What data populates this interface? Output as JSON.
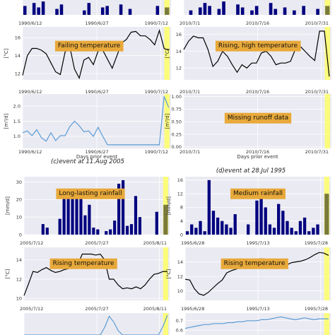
{
  "figure": {
    "captions": [
      {
        "key": "c",
        "text": "(c)event at 11.Aug 2005"
      },
      {
        "key": "d",
        "text": "(d)event at 28.Jul 1995"
      }
    ]
  },
  "colors": {
    "plot_bg": "#eaeaf2",
    "grid": "#ffffff",
    "bar": "#00007f",
    "bar_event": "#7a7a3a",
    "temp_line": "#000000",
    "runoff_line": "#5b9bd5",
    "highlight": "#ffff66",
    "note_bg": "#e8a93a"
  },
  "chart_data": [
    {
      "id": "a-rain",
      "type": "bar",
      "partial": true,
      "xlabels": [
        "1990/6/12",
        "1990/6/27",
        "1990/7/12"
      ],
      "values": [
        6,
        0,
        8,
        5,
        9,
        0,
        0,
        4,
        7,
        0,
        0,
        0,
        0,
        3,
        8,
        0,
        0,
        5,
        6,
        0,
        0,
        7,
        0,
        4,
        0,
        0,
        0,
        0,
        0,
        6
      ],
      "event_value": 5,
      "ylim": [
        0,
        10
      ]
    },
    {
      "id": "a-temp",
      "type": "line",
      "ylabel": "[°C]",
      "yticks": [
        "12",
        "14",
        "16"
      ],
      "ylim": [
        11.3,
        17.2
      ],
      "xlabels": [
        "1990/6/12",
        "1990/6/27",
        "1990/7/12"
      ],
      "values": [
        11.8,
        14.0,
        14.8,
        14.8,
        14.6,
        14.2,
        13.2,
        12.2,
        11.9,
        14.4,
        15.0,
        12.5,
        11.5,
        13.5,
        13.8,
        13.0,
        14.5,
        14.6,
        13.6,
        12.6,
        14.0,
        15.4,
        15.8,
        16.6,
        16.7,
        16.2,
        16.2,
        15.8,
        15.2,
        16.8,
        14.8,
        14.6
      ],
      "note": "Failing temperature"
    },
    {
      "id": "a-runoff",
      "type": "line",
      "ylabel": "[m³/d]",
      "yticks": [
        "1.0",
        "1.5",
        "2.0"
      ],
      "ylim": [
        0.6,
        2.4
      ],
      "xlabels": [
        "1990/6/12",
        "1990/6/27",
        "1990/7/12"
      ],
      "values": [
        1.12,
        1.18,
        1.02,
        1.22,
        0.95,
        0.84,
        1.12,
        0.86,
        1.02,
        1.02,
        1.32,
        1.5,
        1.35,
        1.15,
        1.18,
        1.0,
        1.3,
        1.0,
        0.72,
        0.72,
        0.72,
        0.72,
        0.72,
        0.72,
        0.72,
        0.72,
        0.72,
        0.72,
        0.72,
        0.72,
        2.32,
        1.95
      ],
      "xlabel": "Days prior event"
    },
    {
      "id": "b-rain",
      "type": "bar",
      "partial": true,
      "xlabels": [
        "2010/7/1",
        "2010/7/16",
        "2010/7/31"
      ],
      "values": [
        0,
        3,
        0,
        5,
        8,
        6,
        0,
        4,
        9,
        0,
        0,
        7,
        5,
        0,
        3,
        6,
        0,
        0,
        8,
        4,
        0,
        5,
        0,
        3,
        0,
        6,
        0,
        0,
        4
      ],
      "event_value": 6,
      "ylim": [
        0,
        10
      ]
    },
    {
      "id": "b-temp",
      "type": "line",
      "ylabel": "[°C]",
      "yticks": [
        "12",
        "14",
        "16"
      ],
      "ylim": [
        10.6,
        16.9
      ],
      "xlabels": [
        "2010/7/1",
        "2010/7/16",
        "2010/7/31"
      ],
      "values": [
        14.2,
        15.2,
        15.8,
        15.6,
        15.6,
        14.2,
        12.2,
        12.8,
        14.0,
        13.4,
        12.4,
        11.5,
        12.4,
        12.0,
        12.6,
        12.6,
        13.8,
        14.0,
        13.4,
        12.4,
        12.6,
        12.6,
        12.8,
        14.2,
        14.6,
        14.0,
        13.4,
        12.9,
        16.4,
        16.4,
        11.0
      ],
      "note": "Rising, high temperature"
    },
    {
      "id": "b-runoff",
      "type": "empty",
      "ylabel": "[m³/d]",
      "yticks": [
        "0.00",
        "0.25",
        "0.50",
        "0.75",
        "1.00"
      ],
      "ylim": [
        -0.03,
        1.05
      ],
      "xlabels": [
        "2010/7/1",
        "2010/7/16",
        "2010/7/31"
      ],
      "xlabel": "Days prior event",
      "note": "Missing runoff data"
    },
    {
      "id": "c-rain",
      "type": "bar",
      "ylabel": "[mm/d]",
      "yticks": [
        "0",
        "10",
        "20",
        "30"
      ],
      "ylim": [
        0,
        33
      ],
      "xlabels": [
        "2005/7/12",
        "2005/7/27",
        "2005/8/11"
      ],
      "values": [
        0,
        0,
        0,
        0,
        6,
        4,
        0,
        0,
        9,
        22,
        26,
        21,
        25,
        23,
        11,
        17,
        4,
        3,
        0,
        2,
        3,
        8,
        29,
        31,
        5,
        6,
        22,
        10,
        0,
        0,
        0,
        13
      ],
      "event_value": 17,
      "note": "Long-lasting rainfall"
    },
    {
      "id": "c-temp",
      "type": "line",
      "ylabel": "[°C]",
      "yticks": [
        "10",
        "12",
        "14"
      ],
      "ylim": [
        9.8,
        15.3
      ],
      "xlabels": [
        "2005/7/12",
        "2005/7/27",
        "2005/8/11"
      ],
      "values": [
        10.3,
        11.5,
        12.8,
        12.7,
        13.0,
        13.2,
        12.9,
        12.7,
        12.8,
        13.0,
        13.1,
        13.2,
        13.5,
        14.6,
        14.6,
        14.6,
        14.5,
        14.6,
        14.0,
        12.0,
        12.0,
        11.4,
        11.0,
        11.1,
        11.0,
        11.2,
        11.0,
        11.4,
        12.0,
        12.5,
        12.6,
        12.8,
        12.8
      ],
      "note": "Rising temperature"
    },
    {
      "id": "c-runoff",
      "type": "line",
      "partial": true,
      "values": [
        0,
        0,
        0,
        0,
        0,
        0,
        0,
        0,
        0,
        0,
        0,
        0,
        0,
        0,
        0,
        0,
        0,
        0,
        0.35,
        0.85,
        0.6,
        0.2,
        0,
        0,
        0,
        0,
        0,
        0,
        0,
        0,
        0,
        0.4,
        0.9
      ],
      "ylim": [
        0,
        1
      ]
    },
    {
      "id": "d-rain",
      "type": "bar",
      "ylabel": "[mm/d]",
      "yticks": [
        "0",
        "4",
        "8",
        "12",
        "16"
      ],
      "ylim": [
        0,
        17
      ],
      "xlabels": [
        "1995/6/28",
        "1995/7/13",
        "1995/7/28"
      ],
      "values": [
        1,
        3,
        2,
        4,
        1,
        16,
        7,
        5,
        4,
        3,
        2,
        6,
        0,
        0,
        3,
        0,
        10,
        12,
        8,
        3,
        2,
        9,
        7,
        4,
        2,
        1,
        4,
        5,
        1,
        2,
        3
      ],
      "event_value": 12,
      "note": "Medium rainfall"
    },
    {
      "id": "d-temp",
      "type": "line",
      "ylabel": "[°C]",
      "yticks": [
        "10",
        "12",
        "14"
      ],
      "ylim": [
        8.7,
        16.0
      ],
      "xlabels": [
        "1995/6/28",
        "1995/7/13",
        "1995/7/28"
      ],
      "values": [
        11.6,
        11.5,
        10.3,
        9.6,
        9.4,
        9.8,
        10.4,
        11.0,
        11.5,
        12.5,
        12.8,
        13.0,
        13.2,
        13.6,
        14.0,
        14.2,
        14.4,
        14.4,
        14.1,
        13.8,
        13.4,
        13.3,
        13.6,
        13.9,
        14.0,
        14.1,
        14.3,
        14.6,
        15.0,
        15.3,
        15.2,
        14.9
      ],
      "note": "Rising temperature"
    },
    {
      "id": "d-runoff",
      "type": "line",
      "partial": true,
      "yticks": [
        "0.6",
        "0.7"
      ],
      "ylim": [
        0.55,
        0.78
      ],
      "values": [
        0.62,
        0.63,
        0.64,
        0.65,
        0.66,
        0.66,
        0.67,
        0.67,
        0.67,
        0.68,
        0.68,
        0.69,
        0.69,
        0.7,
        0.7,
        0.7,
        0.71,
        0.71,
        0.72,
        0.73,
        0.74,
        0.73,
        0.72,
        0.71,
        0.72,
        0.73,
        0.72,
        0.71,
        0.72,
        0.72,
        0.72
      ]
    }
  ]
}
